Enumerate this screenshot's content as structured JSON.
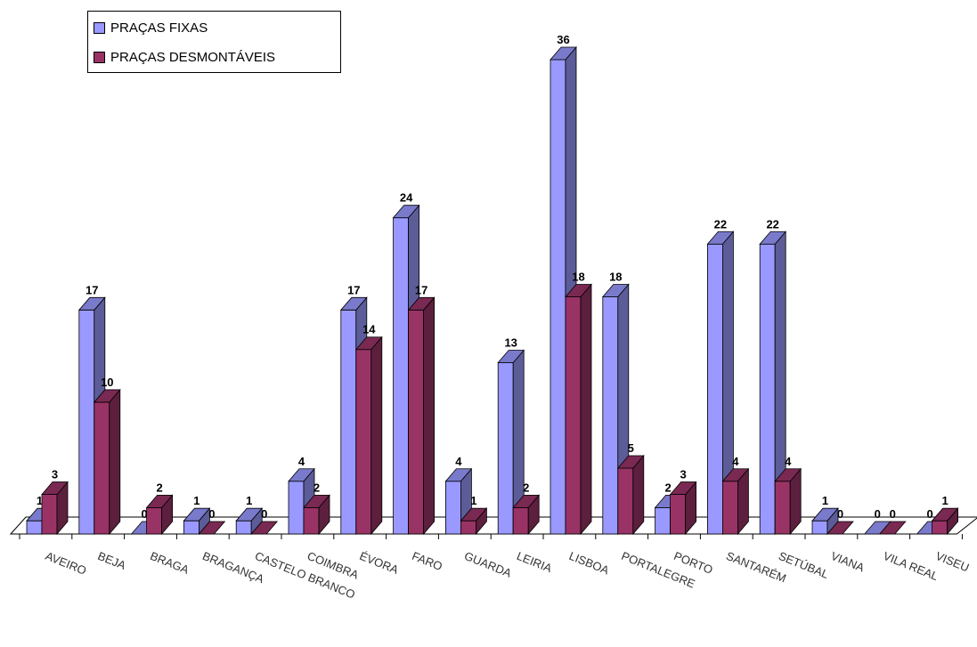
{
  "chart_data": {
    "type": "bar",
    "categories": [
      "AVEIRO",
      "BEJA",
      "BRAGA",
      "BRAGANÇA",
      "CASTELO BRANCO",
      "COIMBRA",
      "ÉVORA",
      "FARO",
      "GUARDA",
      "LEIRIA",
      "LISBOA",
      "PORTALEGRE",
      "PORTO",
      "SANTARÉM",
      "SETÚBAL",
      "VIANA",
      "VILA REAL",
      "VISEU"
    ],
    "series": [
      {
        "name": "PRAÇAS FIXAS",
        "color": "#9999ff",
        "values": [
          1,
          17,
          0,
          1,
          1,
          4,
          17,
          24,
          4,
          13,
          36,
          18,
          2,
          22,
          22,
          1,
          0,
          0
        ]
      },
      {
        "name": "PRAÇAS DESMONTÁVEIS",
        "color": "#993366",
        "values": [
          3,
          10,
          2,
          0,
          0,
          2,
          14,
          17,
          1,
          2,
          18,
          5,
          3,
          4,
          4,
          0,
          0,
          1
        ]
      }
    ],
    "ylim": [
      0,
      36
    ],
    "grid": false,
    "legend_position": "top-left",
    "data_labels": true,
    "three_d": true
  },
  "legend": {
    "items": [
      {
        "label": "PRAÇAS FIXAS",
        "color": "#9999ff"
      },
      {
        "label": "PRAÇAS DESMONTÁVEIS",
        "color": "#993366"
      }
    ]
  }
}
